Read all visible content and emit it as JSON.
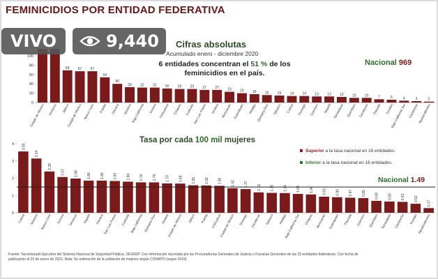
{
  "header": {
    "title": "FEMINICIDIOS POR ENTIDAD FEDERATIVA"
  },
  "overlay": {
    "live_label": "VIVO",
    "view_count": "9,440",
    "view_icon": "eye-icon"
  },
  "section1": {
    "title": "Cifras absolutas",
    "period": "Acumulado enero - diciembre 2020",
    "headline_pre": "6 entidades concentran el",
    "headline_pct": "51 %",
    "headline_post": "de los feminicidios en el país.",
    "national_label": "Nacional",
    "national_value": "969"
  },
  "section2": {
    "title_pre": "Tasa por cada",
    "title_value": "100 mil",
    "title_post": "mujeres",
    "legend_superior_bold": "Superior",
    "legend_superior_rest": "a la tasa nacional en 16 entidades.",
    "legend_inferior_bold": "Inferior",
    "legend_inferior_rest": "a la tasa nacional en 16 entidades.",
    "national_label": "Nacional",
    "national_value": "1.49"
  },
  "footer": {
    "line1": "Fuente: Secretariado Ejecutivo del Sistema Nacional de Seguridad Pública, SESNSP. Con información reportada por las Procuradurías Generales de Justicia o Fiscalías Generales de las 32 entidades federativas. Con fecha de",
    "line2": "publicación al 20 de enero de 2021. Nota: Su estimación de la población de mujeres según CONAPO (según 2019)."
  },
  "colors": {
    "bar": "#7b1a1a",
    "title": "#6b1616",
    "green": "#2d6b2d",
    "national_line": "#222222"
  },
  "chart_data": [
    {
      "type": "bar",
      "title": "Cifras absolutas",
      "subtitle": "Acumulado enero - diciembre 2020",
      "categories": [
        "Estado de México",
        "Veracruz",
        "Jalisco",
        "Ciudad de México",
        "Nuevo León",
        "Puebla",
        "Oaxaca",
        "Morelos",
        "Baja California",
        "Sonora",
        "Chihuahua",
        "Chiapas",
        "Coahuila",
        "San Luis Potosí",
        "Sinaloa",
        "Michoacán",
        "Guanajuato",
        "Hidalgo",
        "Quintana Roo",
        "Tabasco",
        "Colima",
        "Durango",
        "Guerrero",
        "Nayarit",
        "Tamaulipas",
        "Querétaro",
        "Zacatecas",
        "Tlaxcala",
        "Yucatán",
        "Baja California Sur",
        "Campeche",
        "Aguascalientes"
      ],
      "values": [
        null,
        null,
        69,
        67,
        67,
        54,
        40,
        33,
        32,
        32,
        30,
        29,
        29,
        27,
        27,
        23,
        20,
        18,
        16,
        15,
        14,
        14,
        13,
        13,
        12,
        10,
        10,
        7,
        6,
        4,
        3,
        2
      ],
      "value_labels": [
        "",
        "",
        "69",
        "67",
        "67",
        "54",
        "40",
        "33",
        "32",
        "32",
        "30",
        "29",
        "29",
        "27",
        "27",
        "23",
        "20",
        "18",
        "16",
        "15",
        "14",
        "14",
        "13",
        "13",
        "12",
        "10",
        "10",
        "7",
        "6",
        "4",
        "3",
        "2"
      ],
      "y_ticks": [
        0,
        20,
        40,
        60,
        80,
        100
      ],
      "ylim": [
        0,
        115
      ],
      "national_label": "Nacional 969"
    },
    {
      "type": "bar",
      "title": "Tasa por cada 100 mil mujeres",
      "categories": [
        "Colima",
        "Morelos",
        "Nuevo León",
        "Sonora",
        "Veracruz",
        "Nayarit",
        "Oaxaca",
        "San Luis Potosí",
        "Coahuila",
        "Baja California",
        "Quintana Roo",
        "Sinaloa",
        "Estado de México",
        "Jalisco",
        "Puebla",
        "Chihuahua",
        "Ciudad de México",
        "Durango",
        "Zacatecas",
        "Tabasco",
        "Hidalgo",
        "Baja California Sur",
        "Chiapas",
        "Michoacán",
        "Guanajuato",
        "Tlaxcala",
        "Guerrero",
        "Querétaro",
        "Tamaulipas",
        "Campeche",
        "Yucatán",
        "Aguascalientes"
      ],
      "values": [
        3.55,
        3.14,
        2.39,
        2.07,
        1.98,
        1.86,
        1.86,
        1.84,
        1.8,
        1.76,
        1.76,
        1.7,
        1.69,
        1.59,
        1.58,
        1.56,
        1.42,
        1.37,
        1.18,
        1.15,
        1.14,
        1.09,
        1.06,
        0.93,
        0.9,
        0.87,
        0.85,
        0.69,
        0.65,
        0.63,
        0.52,
        0.27
      ],
      "value_labels": [
        "3.55",
        "3.14",
        "2.39",
        "2.07",
        "1.98",
        "1.86",
        "1.86",
        "1.84",
        "1.80",
        "1.76",
        "1.76",
        "1.70",
        "1.69",
        "1.59",
        "1.58",
        "1.56",
        "1.42",
        "1.37",
        "1.18",
        "1.15",
        "1.14",
        "1.09",
        "1.06",
        "0.93",
        "0.90",
        "0.87",
        "0.85",
        "0.69",
        "0.65",
        "0.63",
        "0.52",
        "0.27"
      ],
      "y_ticks": [
        0,
        1,
        2,
        3,
        4
      ],
      "ylim": [
        0,
        4
      ],
      "national_value": 1.49
    }
  ]
}
